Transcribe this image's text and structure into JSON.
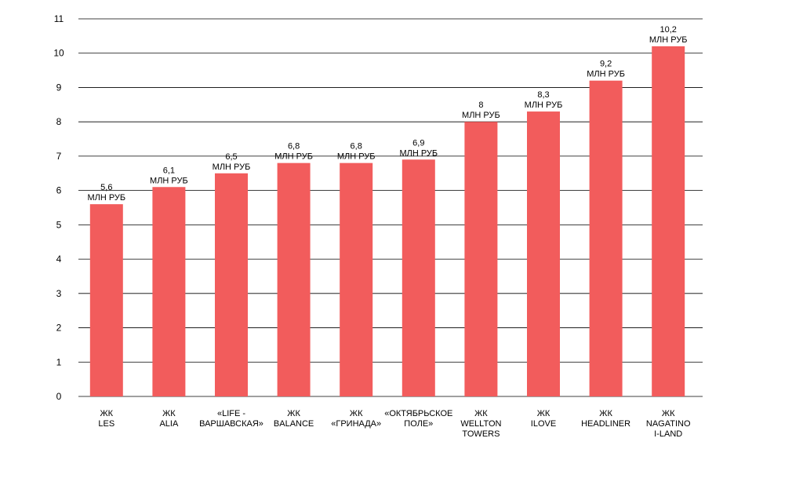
{
  "chart_data": {
    "type": "bar",
    "title": "",
    "xlabel": "",
    "ylabel": "",
    "ylim": [
      0,
      11
    ],
    "yticks": [
      0,
      1,
      2,
      3,
      4,
      5,
      6,
      7,
      8,
      9,
      10,
      11
    ],
    "grid": true,
    "legend": "none",
    "bar_color": "#f25c5c",
    "unit_label": "МЛН РУБ",
    "categories": [
      [
        "ЖК",
        "LES"
      ],
      [
        "ЖК",
        "ALIA"
      ],
      [
        "«LIFE -",
        "ВАРШАВСКАЯ»"
      ],
      [
        "ЖК",
        "BALANCE"
      ],
      [
        "ЖК",
        "«ГРИНАДА»"
      ],
      [
        "«ОКТЯБРЬСКОЕ",
        "ПОЛЕ»"
      ],
      [
        "ЖК",
        "WELLTON",
        "TOWERS"
      ],
      [
        "ЖК",
        "ILOVE"
      ],
      [
        "ЖК",
        "HEADLINER"
      ],
      [
        "ЖК",
        "NAGATINO",
        "I-LAND"
      ]
    ],
    "values": [
      5.6,
      6.1,
      6.5,
      6.8,
      6.8,
      6.9,
      8,
      8.3,
      9.2,
      10.2
    ],
    "value_labels": [
      "5,6",
      "6,1",
      "6,5",
      "6,8",
      "6,8",
      "6,9",
      "8",
      "8,3",
      "9,2",
      "10,2"
    ]
  }
}
